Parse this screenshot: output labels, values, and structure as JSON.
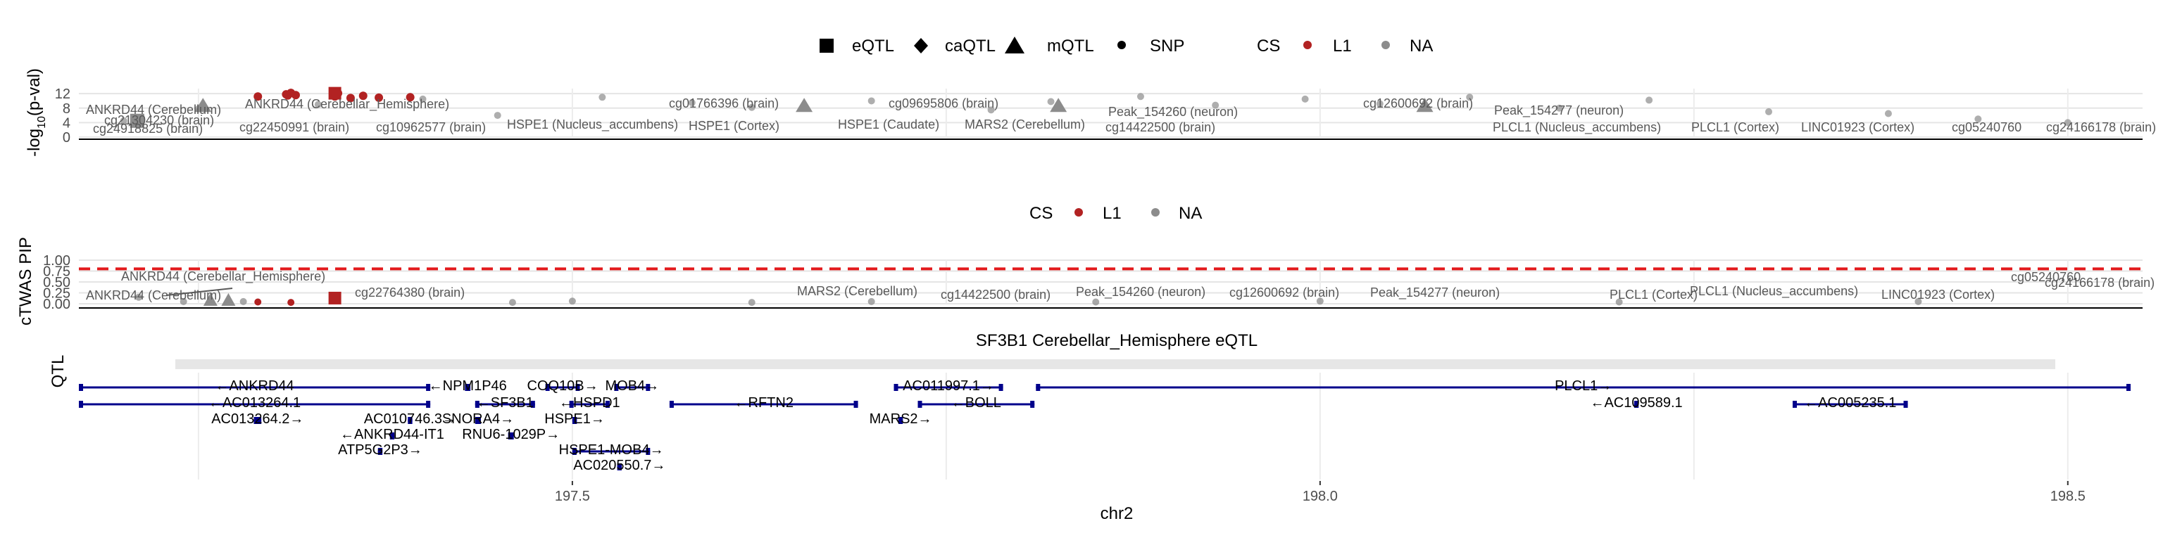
{
  "colors": {
    "cs_l1": "#b22222",
    "cs_na": "#8c8c8c",
    "gene": "#00008b",
    "threshold": "#e31a1c",
    "axis": "#000000"
  },
  "legend_top": {
    "shape_items": [
      "eQTL",
      "caQTL",
      "mQTL",
      "SNP"
    ],
    "cs_title": "CS",
    "cs_items": [
      "L1",
      "NA"
    ]
  },
  "legend_mid": {
    "cs_title": "CS",
    "cs_items": [
      "L1",
      "NA"
    ]
  },
  "chart_data": [
    {
      "type": "scatter",
      "ylabel_main": "-log",
      "ylabel_sub": "10",
      "ylabel_tail": "(p-val)",
      "yticks": [
        "0",
        "4",
        "8",
        "12"
      ],
      "ylim": [
        0,
        13
      ],
      "xlim": [
        197.17,
        198.55
      ],
      "legend": "top",
      "series": [
        {
          "name": "L1",
          "points": [
            [
              197.2897,
              11.2
            ],
            [
              197.3086,
              11.8
            ],
            [
              197.3097,
              11.5
            ],
            [
              197.3118,
              12.2
            ],
            [
              197.315,
              11.6
            ],
            [
              197.3412,
              11.2
            ],
            [
              197.3433,
              12.1
            ],
            [
              197.3517,
              10.8
            ],
            [
              197.3601,
              11.4
            ],
            [
              197.3706,
              10.9
            ],
            [
              197.3916,
              11.0
            ]
          ]
        },
        {
          "name": "NA",
          "points": [
            [
              197.2,
              4.5
            ],
            [
              197.25,
              7.8
            ],
            [
              197.33,
              9.0
            ],
            [
              197.4,
              10.5
            ],
            [
              197.45,
              6.0
            ],
            [
              197.52,
              11.0
            ],
            [
              197.58,
              9.5
            ],
            [
              197.62,
              8.2
            ],
            [
              197.7,
              10.0
            ],
            [
              197.78,
              7.5
            ],
            [
              197.82,
              9.8
            ],
            [
              197.88,
              11.2
            ],
            [
              197.93,
              8.8
            ],
            [
              197.99,
              10.5
            ],
            [
              198.04,
              9.2
            ],
            [
              198.1,
              11.0
            ],
            [
              198.16,
              8.0
            ],
            [
              198.22,
              10.2
            ],
            [
              198.3,
              7.0
            ],
            [
              198.38,
              6.5
            ],
            [
              198.44,
              5.0
            ],
            [
              198.5,
              4.0
            ]
          ]
        }
      ],
      "labels": [
        "ANKRD44 (Cerebellum)",
        "cg24918825 (brain)",
        "cg21304230 (brain)",
        "ANKRD44 (Cerebellar_Hemisphere)",
        "cg22450991 (brain)",
        "cg10962577 (brain)",
        "HSPE1 (Nucleus_accumbens)",
        "cg01766396 (brain)",
        "HSPE1 (Cortex)",
        "HSPE1 (Caudate)",
        "cg09695806 (brain)",
        "MARS2 (Cerebellum)",
        "Peak_154260 (neuron)",
        "cg14422500 (brain)",
        "cg12600692 (brain)",
        "Peak_154277 (neuron)",
        "PLCL1 (Nucleus_accumbens)",
        "PLCL1 (Cortex)",
        "LINC01923 (Cortex)",
        "cg05240760",
        "cg24166178 (brain)"
      ]
    },
    {
      "type": "scatter",
      "ylabel": "cTWAS PIP",
      "yticks": [
        "0.00",
        "0.25",
        "0.50",
        "0.75",
        "1.00"
      ],
      "ylim": [
        0,
        1
      ],
      "threshold": 0.8,
      "series": [
        {
          "name": "L1",
          "points": [
            [
              197.3412,
              0.13
            ],
            [
              197.2897,
              0.04
            ],
            [
              197.3118,
              0.03
            ]
          ]
        },
        {
          "name": "NA",
          "points": [
            [
              197.21,
              0.15
            ],
            [
              197.24,
              0.05
            ],
            [
              197.28,
              0.05
            ],
            [
              197.46,
              0.03
            ],
            [
              197.5,
              0.06
            ],
            [
              197.62,
              0.03
            ],
            [
              197.7,
              0.05
            ],
            [
              197.85,
              0.04
            ],
            [
              198.0,
              0.06
            ],
            [
              198.2,
              0.04
            ],
            [
              198.4,
              0.05
            ]
          ]
        }
      ],
      "labels": [
        "ANKRD44 (Cerebellar_Hemisphere)",
        "ANKRD44 (Cerebellum)",
        "cg22764380 (brain)",
        "MARS2 (Cerebellum)",
        "cg14422500 (brain)",
        "Peak_154260 (neuron)",
        "cg12600692 (brain)",
        "Peak_154277 (neuron)",
        "PLCL1 (Cortex)",
        "PLCL1 (Nucleus_accumbens)",
        "cg05240760",
        "cg24166178 (brain)",
        "LINC01923 (Cortex)"
      ]
    },
    {
      "type": "table",
      "strip_title": "SF3B1 Cerebellar_Hemisphere eQTL",
      "strip_label": "QTL",
      "xlabel": "chr2",
      "xticks": [
        197.5,
        198.0,
        198.5
      ],
      "xtick_labels": [
        "197.5",
        "198.0",
        "198.5"
      ],
      "genes": [
        {
          "name": "←ANKRD44",
          "start": 197.17,
          "end": 197.405,
          "row": 0
        },
        {
          "name": "←AC013264.1",
          "start": 197.17,
          "end": 197.405,
          "row": 1
        },
        {
          "name": "AC013264.2→",
          "start": 197.287,
          "end": 197.292,
          "row": 2
        },
        {
          "name": "AC010746.3→",
          "start": 197.39,
          "end": 197.393,
          "row": 2
        },
        {
          "name": "←ANKRD44-IT1",
          "start": 197.378,
          "end": 197.381,
          "row": 3
        },
        {
          "name": "ATP5G2P3→",
          "start": 197.37,
          "end": 197.373,
          "row": 4
        },
        {
          "name": "←NPM1P46",
          "start": 197.429,
          "end": 197.431,
          "row": 0
        },
        {
          "name": "←SF3B1",
          "start": 197.435,
          "end": 197.475,
          "row": 1
        },
        {
          "name": "SNORA4→",
          "start": 197.436,
          "end": 197.437,
          "row": 2
        },
        {
          "name": "RNU6-1029P→",
          "start": 197.458,
          "end": 197.459,
          "row": 3
        },
        {
          "name": "COQ10B→",
          "start": 197.482,
          "end": 197.505,
          "row": 0
        },
        {
          "name": "←HSPD1",
          "start": 197.498,
          "end": 197.525,
          "row": 1
        },
        {
          "name": "HSPE1→",
          "start": 197.5,
          "end": 197.503,
          "row": 2
        },
        {
          "name": "HSPE1-MOB4→",
          "start": 197.5,
          "end": 197.552,
          "row": 4
        },
        {
          "name": "AC020550.7→",
          "start": 197.53,
          "end": 197.533,
          "row": 5
        },
        {
          "name": "MOB4→",
          "start": 197.528,
          "end": 197.552,
          "row": 0
        },
        {
          "name": "←RFTN2",
          "start": 197.565,
          "end": 197.691,
          "row": 1
        },
        {
          "name": "AC011997.1→",
          "start": 197.715,
          "end": 197.788,
          "row": 0
        },
        {
          "name": "←BOLL",
          "start": 197.731,
          "end": 197.809,
          "row": 1
        },
        {
          "name": "MARS2→",
          "start": 197.718,
          "end": 197.721,
          "row": 2
        },
        {
          "name": "PLCL1→",
          "start": 197.81,
          "end": 198.542,
          "row": 0
        },
        {
          "name": "←AC109589.1",
          "start": 198.21,
          "end": 198.213,
          "row": 1
        },
        {
          "name": "←AC005235.1",
          "start": 198.316,
          "end": 198.393,
          "row": 1
        }
      ]
    }
  ]
}
